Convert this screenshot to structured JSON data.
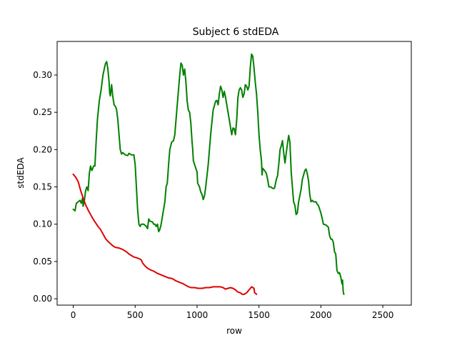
{
  "chart_data": {
    "type": "line",
    "title": "Subject 6 stdEDA",
    "xlabel": "row",
    "ylabel": "stdEDA",
    "xlim": [
      -130,
      2730
    ],
    "ylim": [
      -0.0085,
      0.345
    ],
    "xticks": [
      0,
      500,
      1000,
      1500,
      2000,
      2500
    ],
    "yticks": [
      0.0,
      0.05,
      0.1,
      0.15,
      0.2,
      0.25,
      0.3
    ],
    "ytick_labels": [
      "0.00",
      "0.05",
      "0.10",
      "0.15",
      "0.20",
      "0.25",
      "0.30"
    ],
    "grid": false,
    "legend": "none",
    "series": [
      {
        "color": "#008000",
        "points": [
          [
            0,
            0.12
          ],
          [
            15,
            0.118
          ],
          [
            25,
            0.128
          ],
          [
            40,
            0.13
          ],
          [
            55,
            0.132
          ],
          [
            65,
            0.128
          ],
          [
            75,
            0.135
          ],
          [
            80,
            0.124
          ],
          [
            90,
            0.132
          ],
          [
            100,
            0.145
          ],
          [
            110,
            0.15
          ],
          [
            120,
            0.145
          ],
          [
            130,
            0.168
          ],
          [
            140,
            0.178
          ],
          [
            150,
            0.172
          ],
          [
            165,
            0.178
          ],
          [
            175,
            0.178
          ],
          [
            185,
            0.21
          ],
          [
            195,
            0.24
          ],
          [
            210,
            0.265
          ],
          [
            225,
            0.28
          ],
          [
            240,
            0.3
          ],
          [
            260,
            0.315
          ],
          [
            270,
            0.318
          ],
          [
            280,
            0.308
          ],
          [
            290,
            0.29
          ],
          [
            295,
            0.275
          ],
          [
            300,
            0.272
          ],
          [
            310,
            0.287
          ],
          [
            320,
            0.271
          ],
          [
            330,
            0.26
          ],
          [
            340,
            0.258
          ],
          [
            350,
            0.254
          ],
          [
            360,
            0.24
          ],
          [
            370,
            0.22
          ],
          [
            380,
            0.2
          ],
          [
            390,
            0.194
          ],
          [
            400,
            0.196
          ],
          [
            420,
            0.193
          ],
          [
            440,
            0.192
          ],
          [
            450,
            0.195
          ],
          [
            470,
            0.193
          ],
          [
            490,
            0.193
          ],
          [
            500,
            0.18
          ],
          [
            510,
            0.15
          ],
          [
            520,
            0.12
          ],
          [
            530,
            0.1
          ],
          [
            540,
            0.097
          ],
          [
            550,
            0.1
          ],
          [
            570,
            0.1
          ],
          [
            590,
            0.097
          ],
          [
            600,
            0.094
          ],
          [
            610,
            0.107
          ],
          [
            620,
            0.104
          ],
          [
            640,
            0.103
          ],
          [
            650,
            0.1
          ],
          [
            660,
            0.1
          ],
          [
            670,
            0.097
          ],
          [
            680,
            0.1
          ],
          [
            690,
            0.09
          ],
          [
            700,
            0.093
          ],
          [
            710,
            0.1
          ],
          [
            720,
            0.11
          ],
          [
            730,
            0.12
          ],
          [
            740,
            0.13
          ],
          [
            750,
            0.15
          ],
          [
            760,
            0.155
          ],
          [
            770,
            0.18
          ],
          [
            780,
            0.2
          ],
          [
            795,
            0.21
          ],
          [
            810,
            0.212
          ],
          [
            820,
            0.22
          ],
          [
            830,
            0.24
          ],
          [
            845,
            0.27
          ],
          [
            860,
            0.3
          ],
          [
            870,
            0.316
          ],
          [
            880,
            0.313
          ],
          [
            890,
            0.3
          ],
          [
            900,
            0.308
          ],
          [
            910,
            0.29
          ],
          [
            920,
            0.265
          ],
          [
            930,
            0.253
          ],
          [
            940,
            0.25
          ],
          [
            950,
            0.235
          ],
          [
            960,
            0.21
          ],
          [
            965,
            0.2
          ],
          [
            970,
            0.185
          ],
          [
            980,
            0.18
          ],
          [
            990,
            0.175
          ],
          [
            1000,
            0.17
          ],
          [
            1005,
            0.155
          ],
          [
            1020,
            0.15
          ],
          [
            1030,
            0.143
          ],
          [
            1040,
            0.14
          ],
          [
            1050,
            0.133
          ],
          [
            1060,
            0.138
          ],
          [
            1070,
            0.15
          ],
          [
            1090,
            0.18
          ],
          [
            1110,
            0.22
          ],
          [
            1130,
            0.253
          ],
          [
            1150,
            0.265
          ],
          [
            1160,
            0.266
          ],
          [
            1170,
            0.26
          ],
          [
            1180,
            0.275
          ],
          [
            1190,
            0.285
          ],
          [
            1200,
            0.28
          ],
          [
            1210,
            0.27
          ],
          [
            1220,
            0.278
          ],
          [
            1230,
            0.27
          ],
          [
            1240,
            0.26
          ],
          [
            1260,
            0.24
          ],
          [
            1270,
            0.23
          ],
          [
            1280,
            0.22
          ],
          [
            1290,
            0.229
          ],
          [
            1300,
            0.228
          ],
          [
            1310,
            0.22
          ],
          [
            1320,
            0.24
          ],
          [
            1330,
            0.27
          ],
          [
            1340,
            0.28
          ],
          [
            1350,
            0.283
          ],
          [
            1360,
            0.28
          ],
          [
            1370,
            0.27
          ],
          [
            1380,
            0.275
          ],
          [
            1390,
            0.287
          ],
          [
            1400,
            0.285
          ],
          [
            1410,
            0.28
          ],
          [
            1420,
            0.285
          ],
          [
            1430,
            0.31
          ],
          [
            1440,
            0.328
          ],
          [
            1450,
            0.325
          ],
          [
            1460,
            0.31
          ],
          [
            1470,
            0.29
          ],
          [
            1480,
            0.275
          ],
          [
            1490,
            0.25
          ],
          [
            1500,
            0.22
          ],
          [
            1510,
            0.2
          ],
          [
            1520,
            0.185
          ],
          [
            1525,
            0.166
          ],
          [
            1530,
            0.175
          ],
          [
            1545,
            0.172
          ],
          [
            1560,
            0.168
          ],
          [
            1570,
            0.16
          ],
          [
            1580,
            0.15
          ],
          [
            1595,
            0.15
          ],
          [
            1610,
            0.148
          ],
          [
            1625,
            0.148
          ],
          [
            1640,
            0.16
          ],
          [
            1650,
            0.165
          ],
          [
            1660,
            0.18
          ],
          [
            1670,
            0.2
          ],
          [
            1680,
            0.205
          ],
          [
            1690,
            0.212
          ],
          [
            1700,
            0.195
          ],
          [
            1710,
            0.182
          ],
          [
            1720,
            0.195
          ],
          [
            1730,
            0.208
          ],
          [
            1740,
            0.219
          ],
          [
            1750,
            0.21
          ],
          [
            1755,
            0.19
          ],
          [
            1760,
            0.17
          ],
          [
            1770,
            0.15
          ],
          [
            1780,
            0.13
          ],
          [
            1790,
            0.125
          ],
          [
            1800,
            0.113
          ],
          [
            1810,
            0.115
          ],
          [
            1820,
            0.13
          ],
          [
            1840,
            0.147
          ],
          [
            1850,
            0.16
          ],
          [
            1870,
            0.172
          ],
          [
            1880,
            0.174
          ],
          [
            1890,
            0.168
          ],
          [
            1900,
            0.158
          ],
          [
            1910,
            0.14
          ],
          [
            1920,
            0.13
          ],
          [
            1930,
            0.132
          ],
          [
            1940,
            0.13
          ],
          [
            1960,
            0.13
          ],
          [
            1970,
            0.127
          ],
          [
            1980,
            0.125
          ],
          [
            1990,
            0.12
          ],
          [
            2000,
            0.115
          ],
          [
            2010,
            0.108
          ],
          [
            2020,
            0.1
          ],
          [
            2040,
            0.099
          ],
          [
            2060,
            0.096
          ],
          [
            2070,
            0.085
          ],
          [
            2080,
            0.08
          ],
          [
            2090,
            0.08
          ],
          [
            2100,
            0.076
          ],
          [
            2110,
            0.063
          ],
          [
            2120,
            0.06
          ],
          [
            2130,
            0.038
          ],
          [
            2140,
            0.034
          ],
          [
            2150,
            0.035
          ],
          [
            2160,
            0.03
          ],
          [
            2170,
            0.02
          ],
          [
            2175,
            0.025
          ],
          [
            2180,
            0.01
          ],
          [
            2185,
            0.006
          ]
        ]
      },
      {
        "color": "#e00000",
        "points": [
          [
            0,
            0.167
          ],
          [
            20,
            0.163
          ],
          [
            40,
            0.157
          ],
          [
            60,
            0.145
          ],
          [
            80,
            0.135
          ],
          [
            100,
            0.126
          ],
          [
            120,
            0.119
          ],
          [
            140,
            0.113
          ],
          [
            160,
            0.107
          ],
          [
            180,
            0.102
          ],
          [
            200,
            0.097
          ],
          [
            220,
            0.093
          ],
          [
            240,
            0.087
          ],
          [
            260,
            0.081
          ],
          [
            280,
            0.077
          ],
          [
            300,
            0.074
          ],
          [
            320,
            0.071
          ],
          [
            340,
            0.069
          ],
          [
            370,
            0.068
          ],
          [
            400,
            0.066
          ],
          [
            430,
            0.063
          ],
          [
            450,
            0.06
          ],
          [
            470,
            0.058
          ],
          [
            490,
            0.056
          ],
          [
            510,
            0.055
          ],
          [
            530,
            0.054
          ],
          [
            550,
            0.052
          ],
          [
            560,
            0.048
          ],
          [
            580,
            0.044
          ],
          [
            600,
            0.041
          ],
          [
            620,
            0.039
          ],
          [
            650,
            0.037
          ],
          [
            680,
            0.034
          ],
          [
            710,
            0.032
          ],
          [
            740,
            0.03
          ],
          [
            770,
            0.028
          ],
          [
            800,
            0.027
          ],
          [
            830,
            0.024
          ],
          [
            860,
            0.022
          ],
          [
            890,
            0.02
          ],
          [
            920,
            0.017
          ],
          [
            950,
            0.015
          ],
          [
            980,
            0.015
          ],
          [
            1010,
            0.014
          ],
          [
            1040,
            0.014
          ],
          [
            1070,
            0.015
          ],
          [
            1100,
            0.015
          ],
          [
            1130,
            0.016
          ],
          [
            1160,
            0.016
          ],
          [
            1190,
            0.016
          ],
          [
            1210,
            0.015
          ],
          [
            1230,
            0.013
          ],
          [
            1250,
            0.014
          ],
          [
            1270,
            0.015
          ],
          [
            1290,
            0.014
          ],
          [
            1310,
            0.012
          ],
          [
            1330,
            0.009
          ],
          [
            1350,
            0.008
          ],
          [
            1365,
            0.006
          ],
          [
            1380,
            0.006
          ],
          [
            1400,
            0.008
          ],
          [
            1420,
            0.012
          ],
          [
            1440,
            0.016
          ],
          [
            1460,
            0.014
          ],
          [
            1465,
            0.008
          ],
          [
            1475,
            0.007
          ],
          [
            1480,
            0.006
          ]
        ]
      }
    ]
  }
}
